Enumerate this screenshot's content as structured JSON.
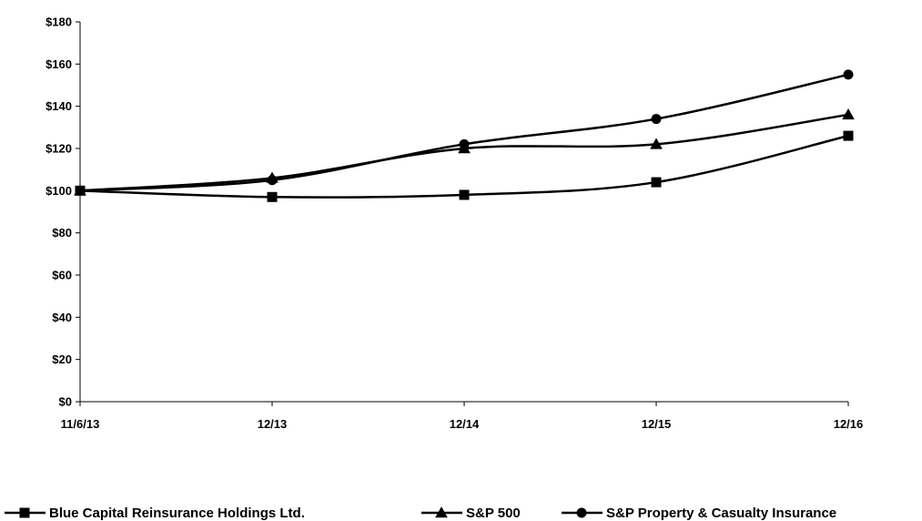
{
  "chart_data": {
    "type": "line",
    "categories": [
      "11/6/13",
      "12/13",
      "12/14",
      "12/15",
      "12/16"
    ],
    "ylim": [
      0,
      180
    ],
    "y_ticks": [
      0,
      20,
      40,
      60,
      80,
      100,
      120,
      140,
      160,
      180
    ],
    "y_tick_labels": [
      "$0",
      "$20",
      "$40",
      "$60",
      "$80",
      "$100",
      "$120",
      "$140",
      "$160",
      "$180"
    ],
    "title": "",
    "xlabel": "",
    "ylabel": "",
    "grid": false,
    "legend_position": "bottom",
    "series": [
      {
        "name": "Blue Capital Reinsurance Holdings Ltd.",
        "marker": "square",
        "color": "#000000",
        "values": [
          100,
          97,
          98,
          104,
          126
        ]
      },
      {
        "name": "S&P 500",
        "marker": "triangle",
        "color": "#000000",
        "values": [
          100,
          106,
          120,
          122,
          136
        ]
      },
      {
        "name": "S&P Property & Casualty Insurance",
        "marker": "circle",
        "color": "#000000",
        "values": [
          100,
          105,
          122,
          134,
          155
        ]
      }
    ]
  }
}
